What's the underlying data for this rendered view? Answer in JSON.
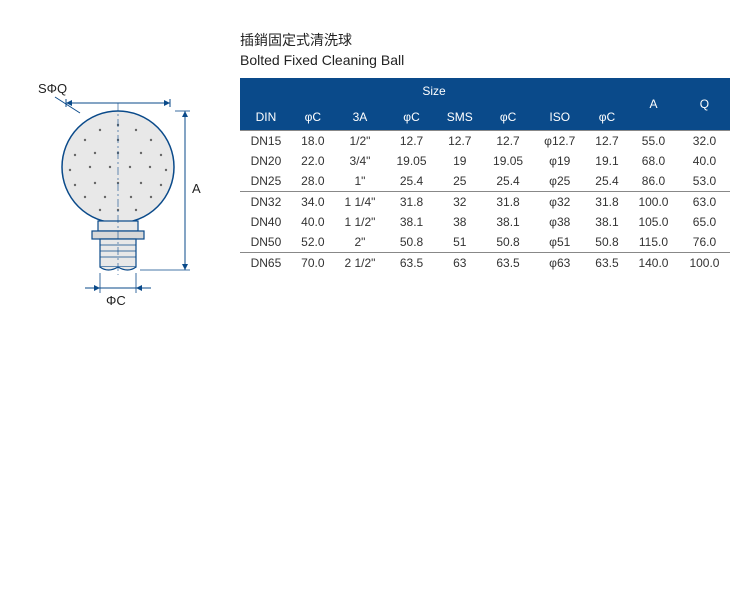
{
  "title_zh": "插銷固定式清洗球",
  "title_en": "Bolted Fixed  Cleaning Ball",
  "diagram": {
    "label_sq": "SΦQ",
    "label_a": "A",
    "label_c": "ΦC",
    "stroke": "#0a4a8a",
    "ball_fill": "#e8e8e8"
  },
  "table": {
    "header_bg": "#0a4a8a",
    "header_fg": "#ffffff",
    "size_label": "Size",
    "cols": [
      "DIN",
      "φC",
      "3A",
      "φC",
      "SMS",
      "φC",
      "ISO",
      "φC",
      "A",
      "Q"
    ],
    "groups": [
      [
        {
          "din": "DN15",
          "c1": "18.0",
          "a3": "1/2\"",
          "c2": "12.7",
          "sms": "12.7",
          "c3": "12.7",
          "iso": "φ12.7",
          "c4": "12.7",
          "a": "55.0",
          "q": "32.0"
        },
        {
          "din": "DN20",
          "c1": "22.0",
          "a3": "3/4\"",
          "c2": "19.05",
          "sms": "19",
          "c3": "19.05",
          "iso": "φ19",
          "c4": "19.1",
          "a": "68.0",
          "q": "40.0"
        },
        {
          "din": "DN25",
          "c1": "28.0",
          "a3": "1\"",
          "c2": "25.4",
          "sms": "25",
          "c3": "25.4",
          "iso": "φ25",
          "c4": "25.4",
          "a": "86.0",
          "q": "53.0"
        }
      ],
      [
        {
          "din": "DN32",
          "c1": "34.0",
          "a3": "1 1/4\"",
          "c2": "31.8",
          "sms": "32",
          "c3": "31.8",
          "iso": "φ32",
          "c4": "31.8",
          "a": "100.0",
          "q": "63.0"
        },
        {
          "din": "DN40",
          "c1": "40.0",
          "a3": "1 1/2\"",
          "c2": "38.1",
          "sms": "38",
          "c3": "38.1",
          "iso": "φ38",
          "c4": "38.1",
          "a": "105.0",
          "q": "65.0"
        },
        {
          "din": "DN50",
          "c1": "52.0",
          "a3": "2\"",
          "c2": "50.8",
          "sms": "51",
          "c3": "50.8",
          "iso": "φ51",
          "c4": "50.8",
          "a": "115.0",
          "q": "76.0"
        }
      ],
      [
        {
          "din": "DN65",
          "c1": "70.0",
          "a3": "2 1/2\"",
          "c2": "63.5",
          "sms": "63",
          "c3": "63.5",
          "iso": "φ63",
          "c4": "63.5",
          "a": "140.0",
          "q": "100.0"
        }
      ]
    ]
  }
}
